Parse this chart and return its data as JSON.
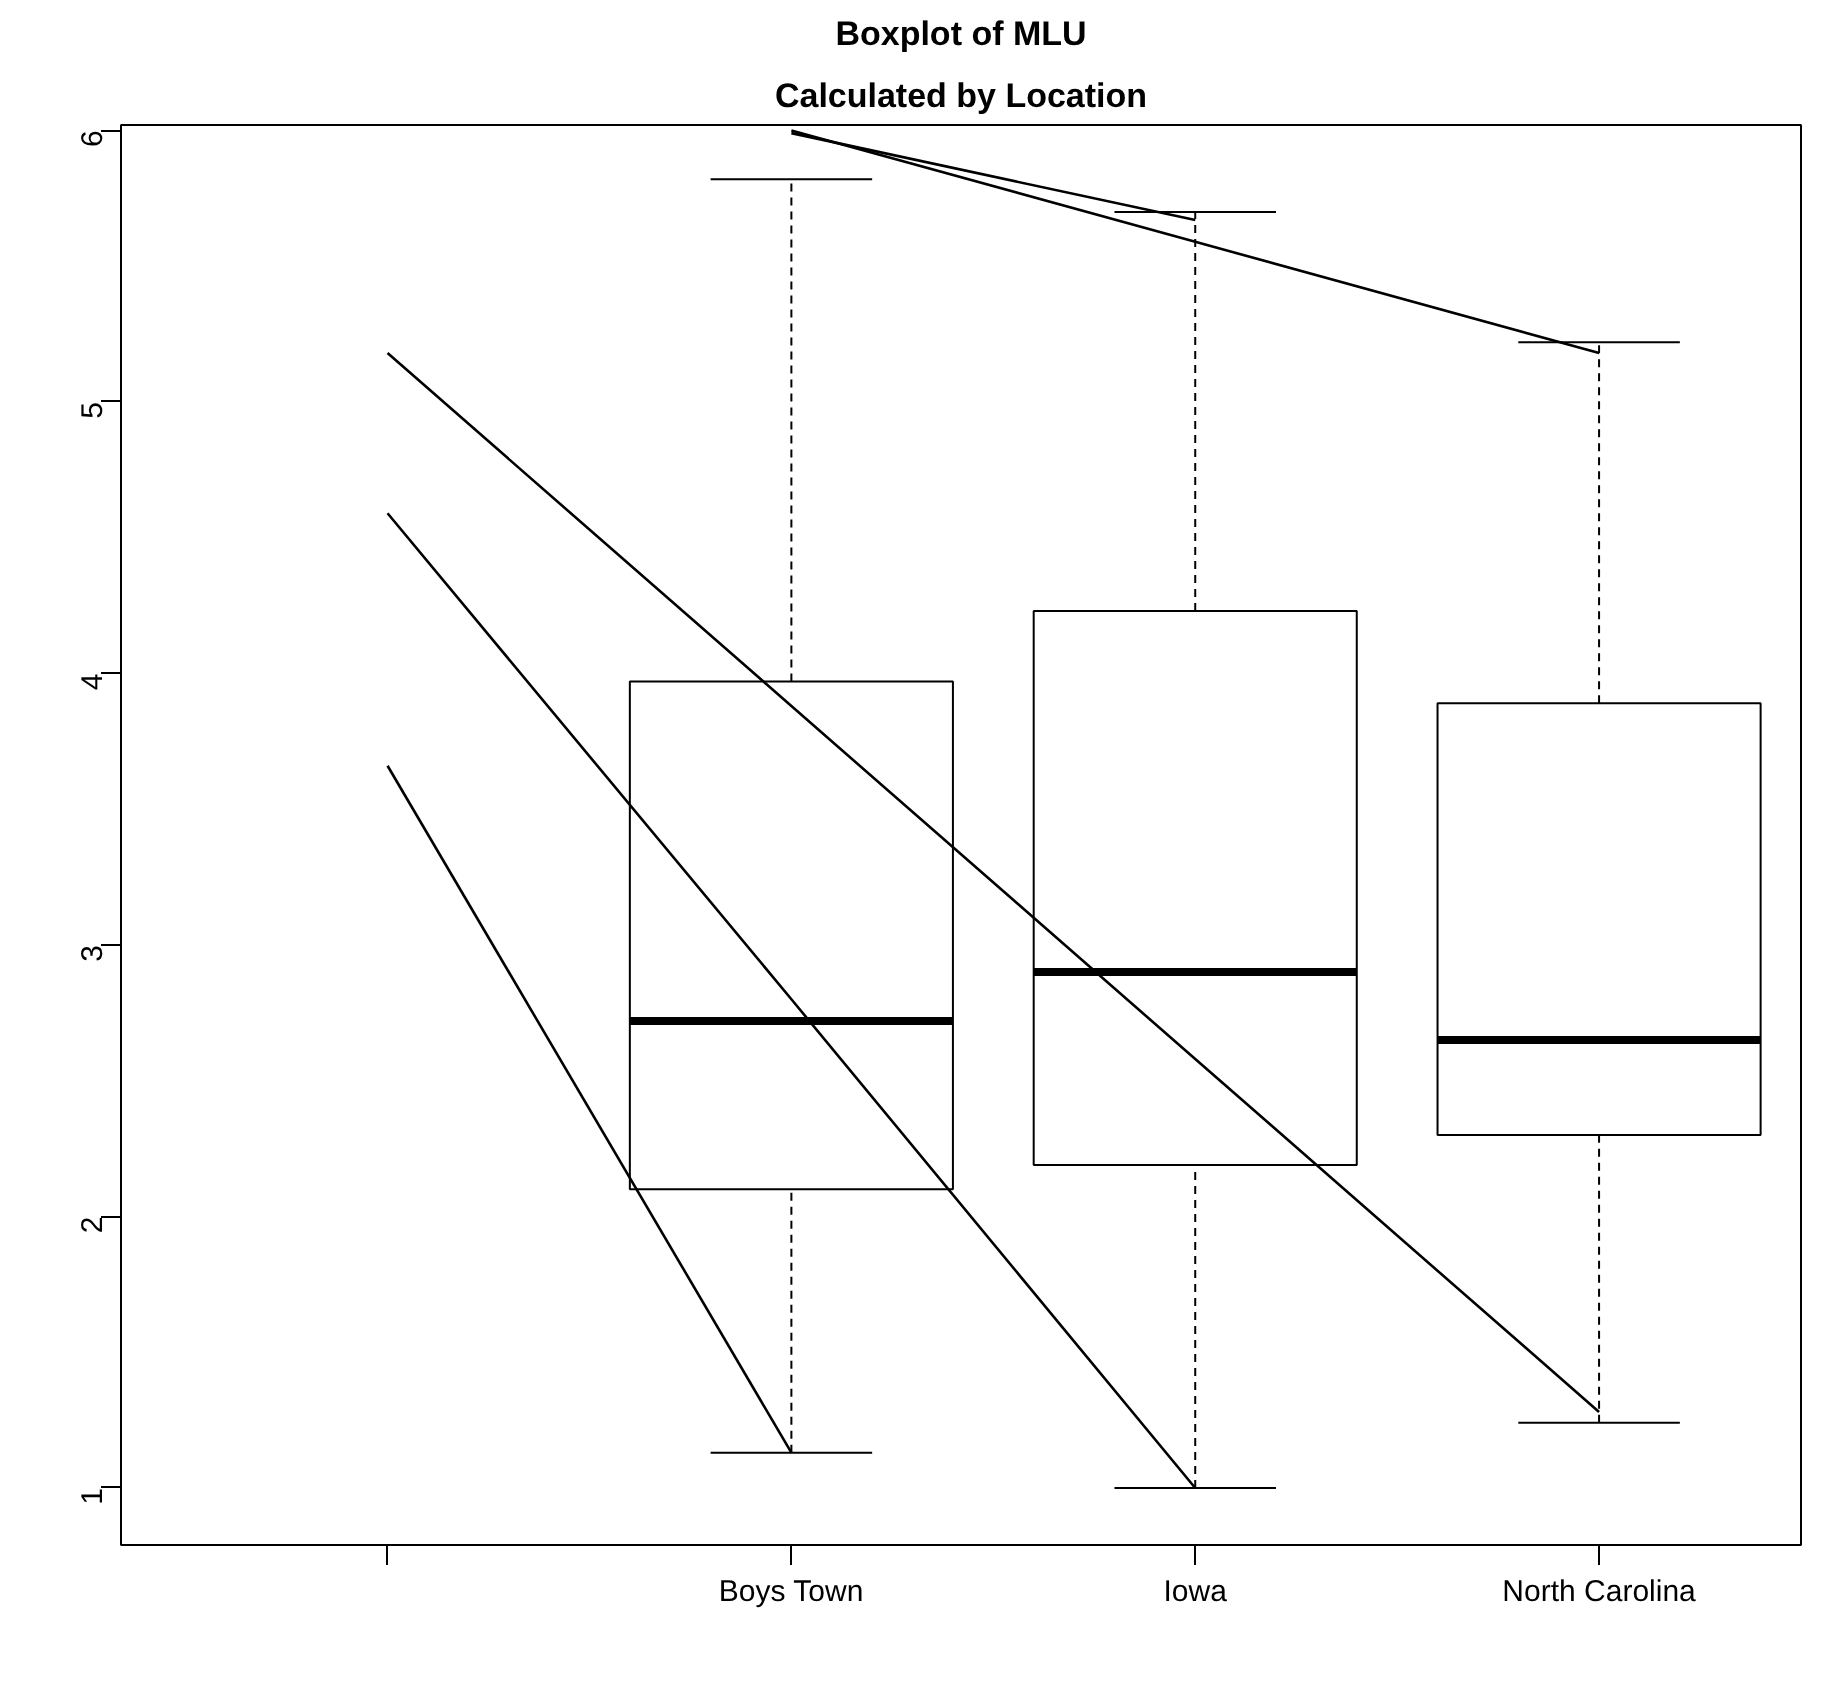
{
  "chart_data": {
    "type": "box",
    "title": "Boxplot of MLU",
    "subtitle": "Calculated by Location",
    "categories": [
      null,
      "Boys Town",
      "Iowa",
      "North Carolina"
    ],
    "boxes": [
      null,
      {
        "low": 1.13,
        "q1": 2.1,
        "median": 2.72,
        "q3": 3.97,
        "high": 5.82
      },
      {
        "low": 1.0,
        "q1": 2.19,
        "median": 2.9,
        "q3": 4.23,
        "high": 5.7
      },
      {
        "low": 1.24,
        "q1": 2.3,
        "median": 2.65,
        "q3": 3.89,
        "high": 5.22
      }
    ],
    "series": [
      {
        "type": "line",
        "color": "#000000",
        "values": [
          3.66,
          1.13,
          null,
          null
        ]
      },
      {
        "type": "line",
        "color": "#000000",
        "values": [
          4.59,
          2.8,
          1.0,
          null
        ]
      },
      {
        "type": "line",
        "color": "#000000",
        "values": [
          5.18,
          3.88,
          2.58,
          1.28
        ]
      },
      {
        "type": "line",
        "color": "#000000",
        "values": [
          null,
          5.99,
          5.67,
          null
        ]
      },
      {
        "type": "line",
        "color": "#000000",
        "values": [
          null,
          6.0,
          5.59,
          5.18
        ]
      }
    ],
    "ylim": [
      0.79,
      6.02
    ],
    "yticks": [
      1,
      2,
      3,
      4,
      5,
      6
    ],
    "grid": false
  }
}
